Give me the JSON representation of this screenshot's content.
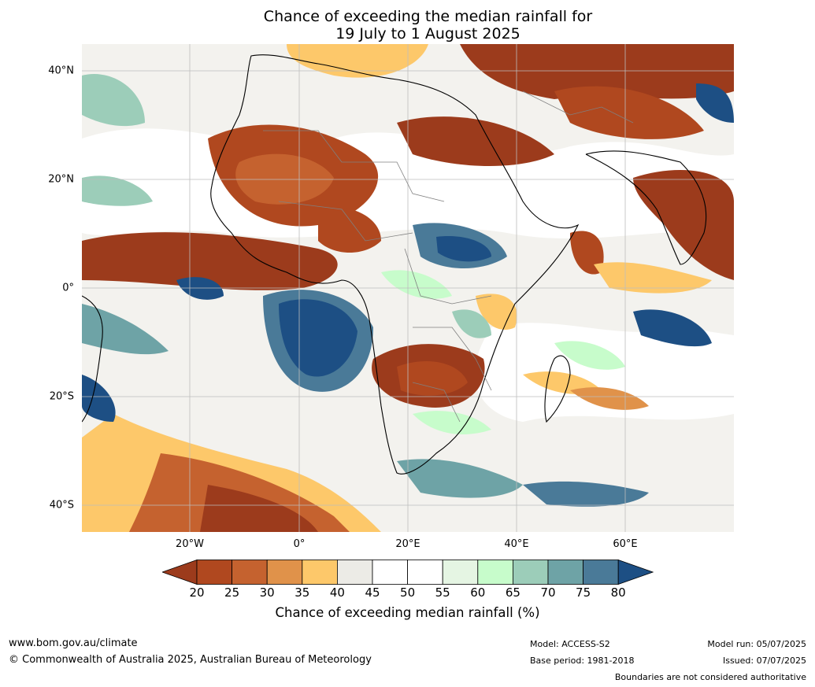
{
  "title": {
    "line1": "Chance of exceeding the median rainfall for",
    "line2": "19 July to 1 August 2025"
  },
  "map": {
    "lat_labels": [
      "40°N",
      "20°N",
      "0°",
      "20°S",
      "40°S"
    ],
    "lon_labels": [
      "20°W",
      "0°",
      "20°E",
      "40°E",
      "60°E"
    ]
  },
  "colorbar": {
    "ticks": [
      "20",
      "25",
      "30",
      "35",
      "40",
      "45",
      "50",
      "55",
      "60",
      "65",
      "70",
      "75",
      "80"
    ],
    "colors": [
      "#9c3b1c",
      "#b0481f",
      "#c5622f",
      "#e0924a",
      "#fdc86a",
      "#ecebe6",
      "#ffffff",
      "#ffffff",
      "#e5f5e3",
      "#c7fccb",
      "#9ccdb9",
      "#6ea3a6",
      "#4a7a98",
      "#1d4f84"
    ],
    "label": "Chance of exceeding median rainfall (%)"
  },
  "footer": {
    "website": "www.bom.gov.au/climate",
    "copyright": "© Commonwealth of Australia 2025, Australian Bureau of Meteorology",
    "model": "Model: ACCESS-S2",
    "base_period": "Base period: 1981-2018",
    "model_run": "Model run: 05/07/2025",
    "issued": "Issued: 07/07/2025",
    "disclaimer": "Boundaries are not considered authoritative"
  }
}
